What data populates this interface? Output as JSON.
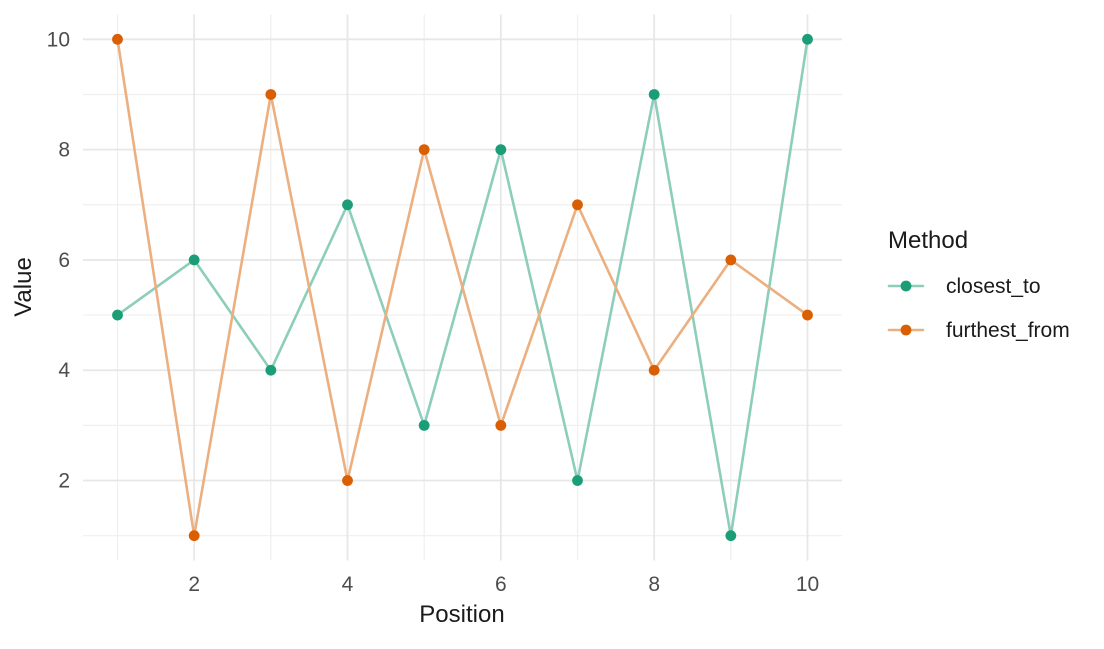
{
  "chart_data": {
    "type": "line",
    "title": "",
    "xlabel": "Position",
    "ylabel": "Value",
    "x": [
      1,
      2,
      3,
      4,
      5,
      6,
      7,
      8,
      9,
      10
    ],
    "series": [
      {
        "name": "closest_to",
        "values": [
          5,
          6,
          4,
          7,
          3,
          8,
          2,
          9,
          1,
          10
        ],
        "point_color": "#1B9E77",
        "line_color": "#8DCEBB"
      },
      {
        "name": "furthest_from",
        "values": [
          10,
          1,
          9,
          2,
          8,
          3,
          7,
          4,
          6,
          5
        ],
        "point_color": "#D95F02",
        "line_color": "#ECAF80"
      }
    ],
    "x_ticks": [
      2,
      4,
      6,
      8,
      10
    ],
    "y_ticks": [
      2,
      4,
      6,
      8,
      10
    ],
    "x_minor": [
      1,
      3,
      5,
      7,
      9
    ],
    "y_minor": [
      1,
      3,
      5,
      7,
      9
    ],
    "xlim": [
      0.55,
      10.45
    ],
    "ylim": [
      0.55,
      10.45
    ],
    "grid": true,
    "legend": {
      "title": "Method",
      "position": "right"
    }
  },
  "colors": {
    "background": "#FFFFFF",
    "grid_major": "#E7E7E7",
    "grid_minor": "#EFEFEF",
    "tick_label": "#4D4D4D",
    "axis_title": "#1A1A1A"
  }
}
